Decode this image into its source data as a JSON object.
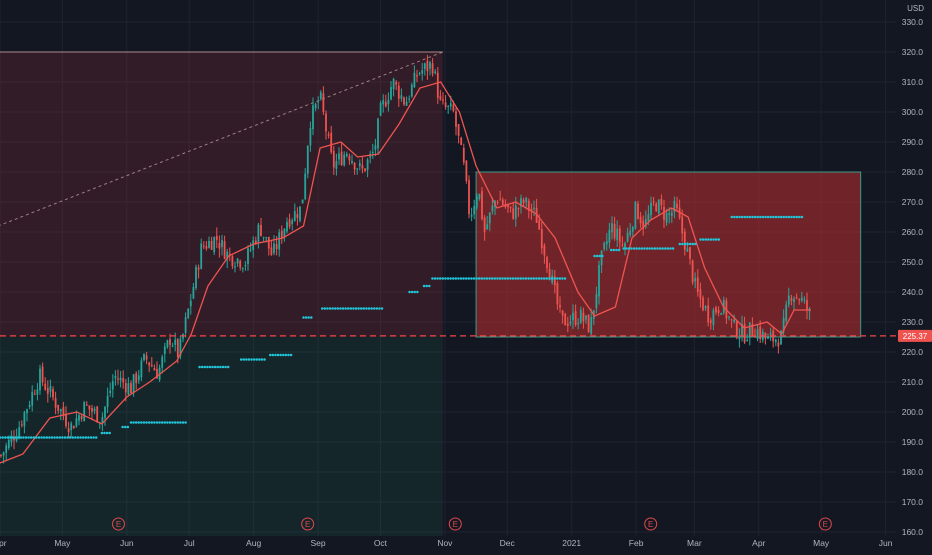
{
  "currency": "USD",
  "price_tag": "225.37",
  "earnings_marker": "E",
  "chart_data": {
    "type": "candlestick",
    "y_ticks": [
      160,
      170,
      180,
      190,
      200,
      210,
      220,
      230,
      240,
      250,
      260,
      270,
      280,
      290,
      300,
      310,
      320,
      330
    ],
    "ylim": [
      157,
      335
    ],
    "x_tick_labels": [
      "Apr",
      "May",
      "Jun",
      "Jul",
      "Aug",
      "Sep",
      "Oct",
      "Nov",
      "Dec",
      "2021",
      "Feb",
      "Mar",
      "Apr",
      "May",
      "Jun"
    ],
    "x_tick_dates": [
      "2020-04-01",
      "2020-05-01",
      "2020-06-01",
      "2020-07-01",
      "2020-08-01",
      "2020-09-01",
      "2020-10-01",
      "2020-11-01",
      "2020-12-01",
      "2021-01-01",
      "2021-02-01",
      "2021-03-01",
      "2021-04-01",
      "2021-05-01",
      "2021-06-01"
    ],
    "earnings_dates": [
      "2020-05-28",
      "2020-08-27",
      "2020-11-06",
      "2021-02-08",
      "2021-05-03"
    ],
    "current_price": 225.37,
    "colors": {
      "up": "#26a69a",
      "down": "#ef5350",
      "ma": "#f05450",
      "dots": "#22c6d9",
      "grid": "#1f2330",
      "axis_text": "#b2b5be",
      "price_line": "#f04848"
    },
    "price_path": [
      [
        "2020-04-01",
        185
      ],
      [
        "2020-04-10",
        195
      ],
      [
        "2020-04-20",
        212
      ],
      [
        "2020-04-27",
        204
      ],
      [
        "2020-05-05",
        195
      ],
      [
        "2020-05-12",
        202
      ],
      [
        "2020-05-20",
        198
      ],
      [
        "2020-05-26",
        212
      ],
      [
        "2020-06-03",
        208
      ],
      [
        "2020-06-10",
        218
      ],
      [
        "2020-06-16",
        213
      ],
      [
        "2020-06-22",
        225
      ],
      [
        "2020-06-26",
        219
      ],
      [
        "2020-06-30",
        232
      ],
      [
        "2020-07-07",
        255
      ],
      [
        "2020-07-14",
        258
      ],
      [
        "2020-07-20",
        252
      ],
      [
        "2020-07-28",
        250
      ],
      [
        "2020-08-04",
        262
      ],
      [
        "2020-08-10",
        252
      ],
      [
        "2020-08-17",
        264
      ],
      [
        "2020-08-24",
        268
      ],
      [
        "2020-08-28",
        297
      ],
      [
        "2020-09-02",
        305
      ],
      [
        "2020-09-08",
        282
      ],
      [
        "2020-09-15",
        287
      ],
      [
        "2020-09-22",
        280
      ],
      [
        "2020-09-28",
        287
      ],
      [
        "2020-10-01",
        300
      ],
      [
        "2020-10-07",
        310
      ],
      [
        "2020-10-13",
        303
      ],
      [
        "2020-10-19",
        313
      ],
      [
        "2020-10-26",
        316
      ],
      [
        "2020-10-30",
        302
      ],
      [
        "2020-11-05",
        300
      ],
      [
        "2020-11-10",
        282
      ],
      [
        "2020-11-13",
        265
      ],
      [
        "2020-11-17",
        275
      ],
      [
        "2020-11-20",
        260
      ],
      [
        "2020-11-26",
        272
      ],
      [
        "2020-12-03",
        266
      ],
      [
        "2020-12-09",
        270
      ],
      [
        "2020-12-15",
        265
      ],
      [
        "2020-12-21",
        248
      ],
      [
        "2020-12-27",
        230
      ],
      [
        "2021-01-05",
        232
      ],
      [
        "2021-01-10",
        228
      ],
      [
        "2021-01-15",
        250
      ],
      [
        "2021-01-20",
        262
      ],
      [
        "2021-01-26",
        255
      ],
      [
        "2021-02-01",
        268
      ],
      [
        "2021-02-05",
        262
      ],
      [
        "2021-02-10",
        270
      ],
      [
        "2021-02-16",
        265
      ],
      [
        "2021-02-20",
        268
      ],
      [
        "2021-02-25",
        255
      ],
      [
        "2021-03-02",
        240
      ],
      [
        "2021-03-08",
        232
      ],
      [
        "2021-03-14",
        236
      ],
      [
        "2021-03-20",
        228
      ],
      [
        "2021-03-25",
        226
      ],
      [
        "2021-03-30",
        228
      ],
      [
        "2021-04-05",
        224
      ],
      [
        "2021-04-12",
        225
      ],
      [
        "2021-04-16",
        240
      ],
      [
        "2021-04-21",
        238
      ],
      [
        "2021-04-26",
        232
      ]
    ],
    "ma_path": [
      [
        "2020-04-01",
        183
      ],
      [
        "2020-04-12",
        186
      ],
      [
        "2020-04-25",
        198
      ],
      [
        "2020-05-08",
        200
      ],
      [
        "2020-05-20",
        196
      ],
      [
        "2020-06-01",
        205
      ],
      [
        "2020-06-12",
        210
      ],
      [
        "2020-06-25",
        217
      ],
      [
        "2020-07-02",
        226
      ],
      [
        "2020-07-10",
        242
      ],
      [
        "2020-07-20",
        252
      ],
      [
        "2020-08-01",
        256
      ],
      [
        "2020-08-15",
        258
      ],
      [
        "2020-08-25",
        262
      ],
      [
        "2020-09-02",
        288
      ],
      [
        "2020-09-12",
        290
      ],
      [
        "2020-09-20",
        285
      ],
      [
        "2020-09-30",
        286
      ],
      [
        "2020-10-10",
        296
      ],
      [
        "2020-10-20",
        308
      ],
      [
        "2020-10-30",
        310
      ],
      [
        "2020-11-08",
        300
      ],
      [
        "2020-11-16",
        282
      ],
      [
        "2020-11-26",
        268
      ],
      [
        "2020-12-05",
        270
      ],
      [
        "2020-12-15",
        266
      ],
      [
        "2020-12-24",
        258
      ],
      [
        "2021-01-04",
        240
      ],
      [
        "2021-01-12",
        232
      ],
      [
        "2021-01-22",
        235
      ],
      [
        "2021-01-30",
        258
      ],
      [
        "2021-02-08",
        264
      ],
      [
        "2021-02-18",
        268
      ],
      [
        "2021-02-26",
        265
      ],
      [
        "2021-03-06",
        248
      ],
      [
        "2021-03-15",
        235
      ],
      [
        "2021-03-25",
        228
      ],
      [
        "2021-04-05",
        230
      ],
      [
        "2021-04-12",
        226
      ],
      [
        "2021-04-18",
        234
      ],
      [
        "2021-04-26",
        234
      ]
    ],
    "dot_segments": [
      [
        "2020-04-01",
        "2020-05-18",
        191.5
      ],
      [
        "2020-05-20",
        "2020-05-24",
        193
      ],
      [
        "2020-05-30",
        "2020-06-02",
        195
      ],
      [
        "2020-06-03",
        "2020-06-30",
        196.5
      ],
      [
        "2020-07-06",
        "2020-07-20",
        215
      ],
      [
        "2020-07-26",
        "2020-08-07",
        217.5
      ],
      [
        "2020-08-09",
        "2020-08-20",
        219
      ],
      [
        "2020-08-25",
        "2020-08-29",
        231.5
      ],
      [
        "2020-09-03",
        "2020-10-03",
        234.5
      ],
      [
        "2020-10-15",
        "2020-10-19",
        240
      ],
      [
        "2020-10-22",
        "2020-10-25",
        242
      ],
      [
        "2020-10-26",
        "2020-12-29",
        244.5
      ],
      [
        "2021-01-12",
        "2021-01-16",
        252
      ],
      [
        "2021-01-20",
        "2021-01-24",
        254
      ],
      [
        "2021-01-26",
        "2021-02-20",
        254.5
      ],
      [
        "2021-02-22",
        "2021-03-02",
        256
      ],
      [
        "2021-03-04",
        "2021-03-14",
        257.5
      ],
      [
        "2021-03-19",
        "2021-04-22",
        265
      ]
    ],
    "long_position_zone": {
      "x": [
        "2020-04-01",
        "2020-10-31"
      ],
      "entry": 225,
      "target": 320,
      "stop": 157
    },
    "short_position_zone": {
      "x": [
        "2020-11-16",
        "2021-05-20"
      ],
      "entry": 225,
      "top": 280
    },
    "trendline": [
      [
        "2020-04-01",
        262
      ],
      [
        "2020-10-31",
        320
      ]
    ]
  }
}
